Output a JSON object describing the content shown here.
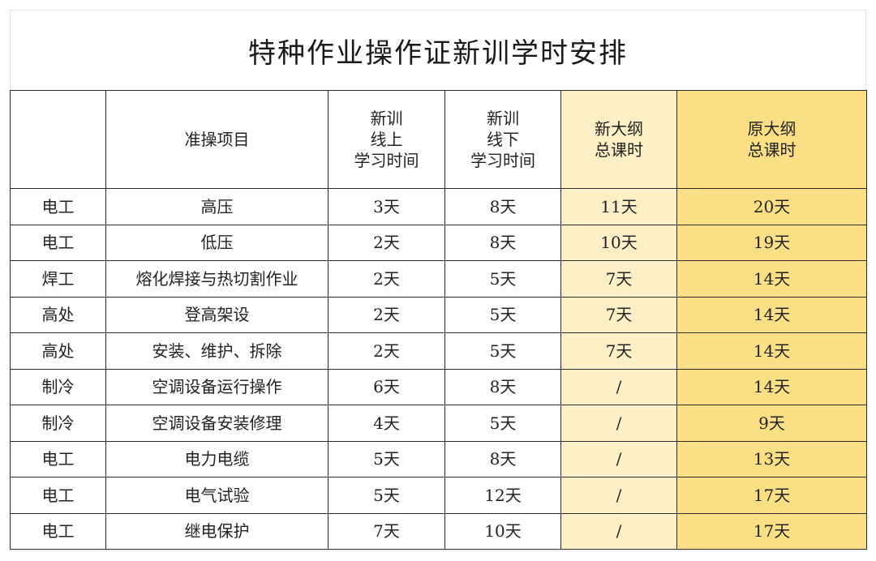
{
  "title": "特种作业操作证新训学时安排",
  "headers": {
    "category": "",
    "item": "准操项目",
    "online": [
      "新训",
      "线上",
      "学习时间"
    ],
    "offline": [
      "新训",
      "线下",
      "学习时间"
    ],
    "new_total": [
      "新大纲",
      "总课时"
    ],
    "old_total": [
      "原大纲",
      "总课时"
    ]
  },
  "colors": {
    "new_total_bg": "#fdf0c6",
    "old_total_bg": "#fbdf84",
    "border": "#2b2b2b"
  },
  "rows": [
    {
      "category": "电工",
      "item": "高压",
      "online": "3天",
      "offline": "8天",
      "new_total": "11天",
      "old_total": "20天"
    },
    {
      "category": "电工",
      "item": "低压",
      "online": "2天",
      "offline": "8天",
      "new_total": "10天",
      "old_total": "19天"
    },
    {
      "category": "焊工",
      "item": "熔化焊接与热切割作业",
      "online": "2天",
      "offline": "5天",
      "new_total": "7天",
      "old_total": "14天"
    },
    {
      "category": "高处",
      "item": "登高架设",
      "online": "2天",
      "offline": "5天",
      "new_total": "7天",
      "old_total": "14天"
    },
    {
      "category": "高处",
      "item": "安装、维护、拆除",
      "online": "2天",
      "offline": "5天",
      "new_total": "7天",
      "old_total": "14天"
    },
    {
      "category": "制冷",
      "item": "空调设备运行操作",
      "online": "6天",
      "offline": "8天",
      "new_total": "/",
      "old_total": "14天"
    },
    {
      "category": "制冷",
      "item": "空调设备安装修理",
      "online": "4天",
      "offline": "5天",
      "new_total": "/",
      "old_total": "9天"
    },
    {
      "category": "电工",
      "item": "电力电缆",
      "online": "5天",
      "offline": "8天",
      "new_total": "/",
      "old_total": "13天"
    },
    {
      "category": "电工",
      "item": "电气试验",
      "online": "5天",
      "offline": "12天",
      "new_total": "/",
      "old_total": "17天"
    },
    {
      "category": "电工",
      "item": "继电保护",
      "online": "7天",
      "offline": "10天",
      "new_total": "/",
      "old_total": "17天"
    }
  ]
}
